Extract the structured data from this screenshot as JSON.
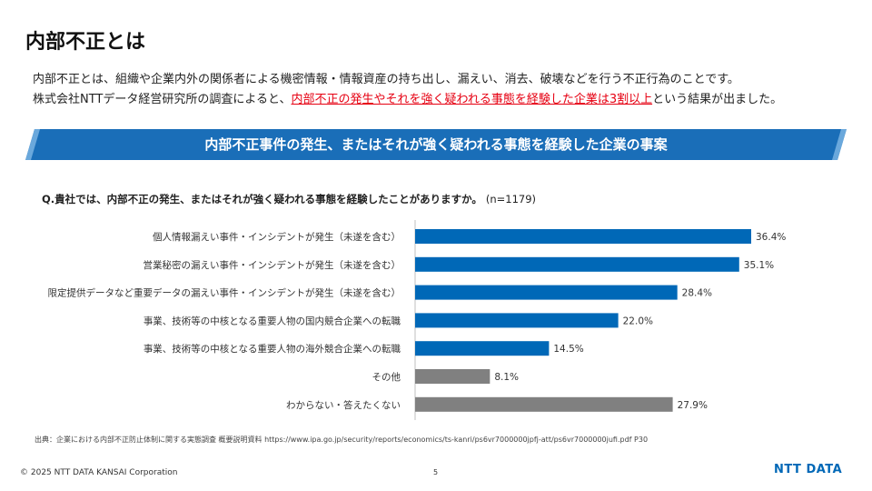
{
  "header": {
    "title": "内部不正とは"
  },
  "intro": {
    "line1": "内部不正とは、組織や企業内外の関係者による機密情報・情報資産の持ち出し、漏えい、消去、破壊などを行う不正行為のことです。",
    "line2_pre": "株式会社NTTデータ経営研究所の調査によると、",
    "line2_highlight": "内部不正の発生やそれを強く疑われる事態を経験した企業は3割以上",
    "line2_post": "という結果が出ました。"
  },
  "banner": {
    "title": "内部不正事件の発生、またはそれが強く疑われる事態を経験した企業の事案"
  },
  "question": {
    "text": "Q.貴社では、内部不正の発生、またはそれが強く疑われる事態を経験したことがありますか。",
    "n": "(n=1179)"
  },
  "chart_data": {
    "type": "bar",
    "orientation": "horizontal",
    "categories": [
      "個人情報漏えい事件・インシデントが発生（未遂を含む）",
      "営業秘密の漏えい事件・インシデントが発生（未遂を含む）",
      "限定提供データなど重要データの漏えい事件・インシデントが発生（未遂を含む）",
      "事業、技術等の中核となる重要人物の国内競合企業への転職",
      "事業、技術等の中核となる重要人物の海外競合企業への転職",
      "その他",
      "わからない・答えたくない"
    ],
    "values": [
      36.4,
      35.1,
      28.4,
      22.0,
      14.5,
      8.1,
      27.9
    ],
    "labels": [
      "36.4%",
      "35.1%",
      "28.4%",
      "22.0%",
      "14.5%",
      "8.1%",
      "27.9%"
    ],
    "colors": [
      "#0068b7",
      "#0068b7",
      "#0068b7",
      "#0068b7",
      "#0068b7",
      "#808080",
      "#808080"
    ],
    "unit": "%",
    "xlim": [
      0,
      40
    ]
  },
  "footer": {
    "source": "出典：企業における内部不正防止体制に関する実態調査 概要説明資料 https://www.ipa.go.jp/security/reports/economics/ts-kanri/ps6vr7000000jpfj-att/ps6vr7000000jufi.pdf P30",
    "copyright": "© 2025 NTT DATA KANSAI Corporation",
    "page": "5",
    "logo": "NTT DATA"
  },
  "colors": {
    "accent": "#0068b7",
    "highlight": "#e60012",
    "gray": "#808080"
  }
}
